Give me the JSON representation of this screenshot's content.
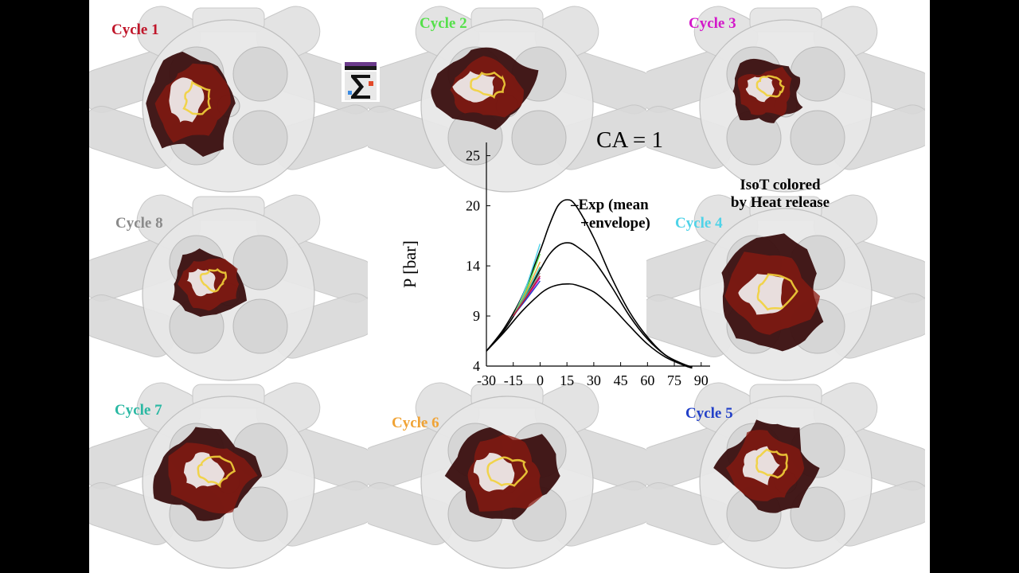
{
  "colors": {
    "flame_dark": "#3a0f0f",
    "flame_red": "#8b1a10",
    "flame_yellow": "#f2d23a",
    "engine_gray": "#d9d9d9",
    "cycles": {
      "cycle1": "#c0162a",
      "cycle2": "#55e04a",
      "cycle3": "#d318c9",
      "cycle4": "#4fd3e8",
      "cycle5": "#2240c8",
      "cycle6": "#f0a335",
      "cycle7": "#2ab8a3",
      "cycle8": "#8a8a8a"
    }
  },
  "cycles": {
    "c1": "Cycle 1",
    "c2": "Cycle 2",
    "c3": "Cycle 3",
    "c4": "Cycle 4",
    "c5": "Cycle 5",
    "c6": "Cycle 6",
    "c7": "Cycle 7",
    "c8": "Cycle 8"
  },
  "logo_icon": "cfd-team-sigma-logo",
  "ca_label": "CA = 1",
  "iso_label": {
    "line1": "IsoT colored",
    "line2": "by Heat release"
  },
  "legend": {
    "line1": "Exp (mean",
    "line2": "+envelope)"
  },
  "chart_data": {
    "type": "line",
    "ylabel": "P [bar]",
    "xlabel": "",
    "xlim": [
      -30,
      95
    ],
    "ylim": [
      4,
      26
    ],
    "x_ticks": [
      "-30",
      "-15",
      "0",
      "15",
      "30",
      "45",
      "60",
      "75",
      "90"
    ],
    "y_ticks": [
      "25",
      "20",
      "14",
      "9",
      "4"
    ],
    "y_tick_values": [
      25,
      20,
      14,
      9,
      4
    ],
    "series": [
      {
        "name": "Exp (mean +envelope)",
        "color": "#000000",
        "x": [
          -30,
          -20,
          -10,
          0,
          5,
          10,
          15,
          20,
          30,
          40,
          50,
          60,
          70,
          80,
          85
        ],
        "y": [
          5.5,
          7.8,
          11.0,
          15.5,
          18.0,
          20.0,
          20.6,
          20.0,
          16.8,
          12.8,
          9.4,
          6.9,
          5.1,
          4.2,
          3.9
        ]
      },
      {
        "name": "",
        "color": "#000000",
        "x": [
          -30,
          -20,
          -10,
          0,
          5,
          10,
          15,
          20,
          30,
          40,
          50,
          60,
          70,
          80,
          85
        ],
        "y": [
          5.5,
          7.6,
          10.4,
          13.6,
          15.1,
          16.0,
          16.3,
          16.0,
          14.5,
          11.9,
          9.0,
          6.7,
          5.1,
          4.2,
          3.9
        ]
      },
      {
        "name": "",
        "color": "#000000",
        "x": [
          -30,
          -20,
          -10,
          0,
          5,
          10,
          15,
          20,
          30,
          40,
          50,
          60,
          70,
          80,
          85
        ],
        "y": [
          5.5,
          7.4,
          9.5,
          11.2,
          11.8,
          12.1,
          12.2,
          12.1,
          11.4,
          9.9,
          8.0,
          6.2,
          4.9,
          4.1,
          3.8
        ]
      },
      {
        "name": "",
        "color": "#4fd3e8",
        "x": [
          -15,
          -8,
          0
        ],
        "y": [
          9.0,
          11.8,
          16.2
        ]
      },
      {
        "name": "",
        "color": "#55e04a",
        "x": [
          -15,
          -8,
          0
        ],
        "y": [
          9.0,
          11.5,
          15.2
        ]
      },
      {
        "name": "",
        "color": "#f0a335",
        "x": [
          -15,
          -8,
          0
        ],
        "y": [
          9.0,
          11.3,
          14.4
        ]
      },
      {
        "name": "",
        "color": "#2ab8a3",
        "x": [
          -15,
          -8,
          0
        ],
        "y": [
          9.0,
          11.1,
          13.9
        ]
      },
      {
        "name": "",
        "color": "#8a8a8a",
        "x": [
          -15,
          -8,
          0
        ],
        "y": [
          9.0,
          10.9,
          13.3
        ]
      },
      {
        "name": "",
        "color": "#d318c9",
        "x": [
          -15,
          -8,
          0
        ],
        "y": [
          9.0,
          10.7,
          12.8
        ]
      },
      {
        "name": "",
        "color": "#2240c8",
        "x": [
          -15,
          -8,
          0
        ],
        "y": [
          9.0,
          10.6,
          12.5
        ]
      },
      {
        "name": "",
        "color": "#c0162a",
        "x": [
          -15,
          -8,
          0
        ],
        "y": [
          9.0,
          10.8,
          13.0
        ]
      }
    ]
  }
}
